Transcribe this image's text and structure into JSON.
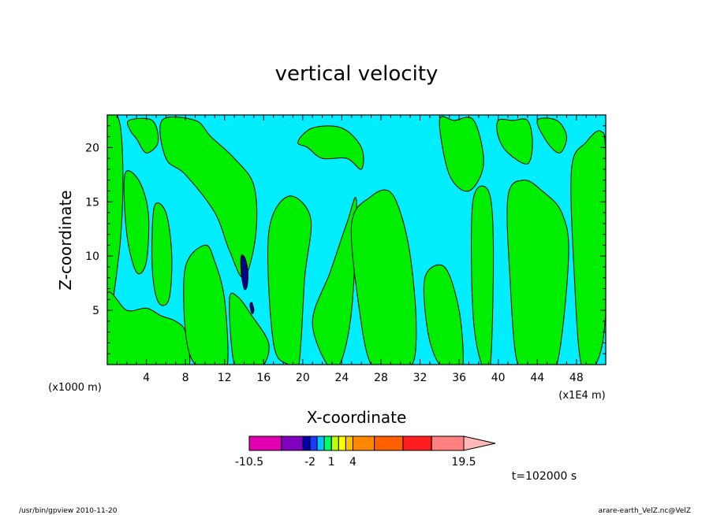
{
  "chart_data": {
    "type": "heatmap",
    "title": "vertical velocity",
    "xlabel": "X-coordinate",
    "ylabel": "Z-coordinate",
    "x_unit": "(x1E4 m)",
    "y_unit": "(x1000 m)",
    "xlim": [
      0,
      51
    ],
    "ylim": [
      0,
      23
    ],
    "x_ticks": [
      4,
      8,
      12,
      16,
      20,
      24,
      28,
      32,
      36,
      40,
      44,
      48
    ],
    "y_ticks": [
      5,
      10,
      15,
      20
    ],
    "background_level_color": "#00eeff",
    "positive_level_color": "#00ee00",
    "strong_color": "#000088",
    "colorbar": {
      "levels": [
        -10.5,
        -6,
        -3,
        -2,
        -1,
        0,
        1,
        2,
        3,
        4,
        7,
        11,
        15,
        19.5
      ],
      "colors": [
        "#e000b0",
        "#8000c0",
        "#0000aa",
        "#1a3cff",
        "#00c8ff",
        "#00ff60",
        "#c0ff00",
        "#ffff00",
        "#ffc000",
        "#ff8800",
        "#ff6000",
        "#ff1e1e",
        "#ff8080",
        "#ffb8b8"
      ],
      "tick_labels": [
        "-10.5",
        "-2",
        "1",
        "4",
        "19.5"
      ]
    },
    "green_regions": [
      {
        "x": [
          0.0,
          1.2,
          1.6,
          1.4,
          0.6,
          0.0
        ],
        "y": [
          22.5,
          22.5,
          18.0,
          12.0,
          6.0,
          3.0
        ]
      },
      {
        "x": [
          2.2,
          4.6,
          5.2,
          4.0,
          3.0,
          2.4
        ],
        "y": [
          22.5,
          22.5,
          20.5,
          19.5,
          20.8,
          21.5
        ]
      },
      {
        "x": [
          5.6,
          9.0,
          10.6,
          13.0,
          15.0,
          15.2,
          14.0,
          12.5,
          11.0,
          8.0,
          6.0
        ],
        "y": [
          22.5,
          22.5,
          21.0,
          19.0,
          16.5,
          12.0,
          8.0,
          10.5,
          14.0,
          17.5,
          19.0
        ]
      },
      {
        "x": [
          1.8,
          3.2,
          4.2,
          4.0,
          3.0,
          2.0
        ],
        "y": [
          17.5,
          17.0,
          14.0,
          9.5,
          8.5,
          12.0
        ]
      },
      {
        "x": [
          4.8,
          6.0,
          6.6,
          6.3,
          5.2,
          4.6
        ],
        "y": [
          14.5,
          14.0,
          10.0,
          6.0,
          5.8,
          9.0
        ]
      },
      {
        "x": [
          0.0,
          2.0,
          4.0,
          5.5,
          7.0,
          8.0,
          8.4,
          7.0,
          4.0,
          1.5,
          0.0
        ],
        "y": [
          6.5,
          5.0,
          5.2,
          4.5,
          4.0,
          3.0,
          0.0,
          0.0,
          0.0,
          0.0,
          0.0
        ]
      },
      {
        "x": [
          8.0,
          10.0,
          11.0,
          12.0,
          12.3,
          11.0,
          9.0,
          8.0
        ],
        "y": [
          9.0,
          11.0,
          9.5,
          6.0,
          0.0,
          0.0,
          0.0,
          3.0
        ]
      },
      {
        "x": [
          12.5,
          13.4,
          14.8,
          16.5,
          16.0,
          14.5,
          13.0
        ],
        "y": [
          6.0,
          6.2,
          4.5,
          2.0,
          0.0,
          0.0,
          0.0
        ]
      },
      {
        "x": [
          16.5,
          18.5,
          20.8,
          20.2,
          19.6,
          18.5,
          17.0
        ],
        "y": [
          12.0,
          15.5,
          13.5,
          8.0,
          0.0,
          0.0,
          2.0
        ]
      },
      {
        "x": [
          19.5,
          21.0,
          24.0,
          26.0,
          26.0,
          24.5,
          22.0,
          20.5
        ],
        "y": [
          20.5,
          21.8,
          21.8,
          20.0,
          18.0,
          19.0,
          19.0,
          20.0
        ]
      },
      {
        "x": [
          21.0,
          22.8,
          24.5,
          25.5,
          25.0,
          23.8,
          22.5
        ],
        "y": [
          4.0,
          8.5,
          13.0,
          15.0,
          5.0,
          0.0,
          0.0
        ]
      },
      {
        "x": [
          25.0,
          27.0,
          28.8,
          30.0,
          31.0,
          31.6,
          31.2,
          29.0,
          27.0,
          25.8
        ],
        "y": [
          13.0,
          15.5,
          16.0,
          14.0,
          10.0,
          4.0,
          0.0,
          0.0,
          0.0,
          5.0
        ]
      },
      {
        "x": [
          32.5,
          34.5,
          36.0,
          36.4,
          35.5,
          34.0,
          32.8
        ],
        "y": [
          8.0,
          9.0,
          5.0,
          0.0,
          0.0,
          0.0,
          3.0
        ]
      },
      {
        "x": [
          34.0,
          35.5,
          37.5,
          38.5,
          37.0,
          35.0
        ],
        "y": [
          22.5,
          22.5,
          22.5,
          18.5,
          16.0,
          17.5
        ]
      },
      {
        "x": [
          37.4,
          39.0,
          39.5,
          39.2,
          38.3,
          37.4
        ],
        "y": [
          15.0,
          16.0,
          11.0,
          0.0,
          0.0,
          5.0
        ]
      },
      {
        "x": [
          40.0,
          41.5,
          43.0,
          43.5,
          43.0,
          41.0,
          40.0
        ],
        "y": [
          22.5,
          22.5,
          22.5,
          20.5,
          18.5,
          19.5,
          21.0
        ]
      },
      {
        "x": [
          41.0,
          42.6,
          44.5,
          46.5,
          47.2,
          46.0,
          44.0,
          42.0,
          41.2
        ],
        "y": [
          15.5,
          17.0,
          16.0,
          14.0,
          10.0,
          0.0,
          0.0,
          0.0,
          8.0
        ]
      },
      {
        "x": [
          47.5,
          49.0,
          50.5,
          51.0,
          51.0,
          50.0,
          48.5,
          47.8
        ],
        "y": [
          18.0,
          20.5,
          21.5,
          19.0,
          5.0,
          0.0,
          0.0,
          8.0
        ]
      },
      {
        "x": [
          44.0,
          46.0,
          47.0,
          46.3,
          45.0
        ],
        "y": [
          22.5,
          22.5,
          21.0,
          19.5,
          20.5
        ]
      }
    ],
    "strong_regions": [
      {
        "x": [
          13.7,
          14.1,
          14.4,
          14.3,
          14.0,
          13.7
        ],
        "y": [
          10.0,
          9.8,
          8.5,
          7.2,
          7.0,
          8.5
        ]
      },
      {
        "x": [
          14.6,
          14.8,
          15.0,
          14.8
        ],
        "y": [
          5.5,
          5.7,
          5.0,
          4.7
        ]
      }
    ]
  },
  "footer": {
    "left": "/usr/bin/gpview   2010-11-20",
    "right": "arare-earth_VelZ.nc@VelZ"
  },
  "time_label": "t=102000 s"
}
